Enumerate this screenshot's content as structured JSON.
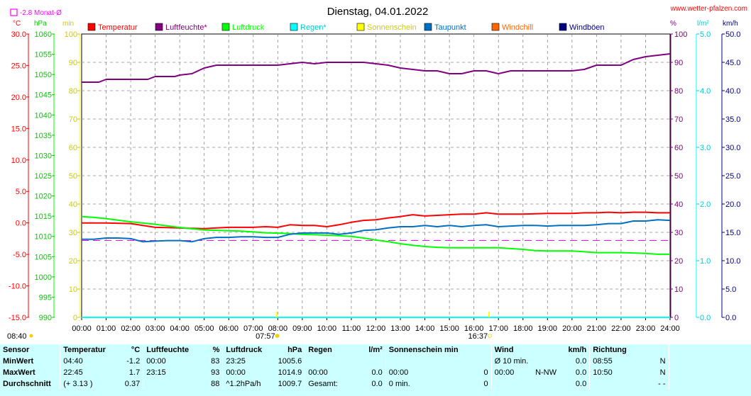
{
  "header": {
    "title": "Dienstag, 04.01.2022",
    "site": "www.wetter-pfalzen.com",
    "month_avg_label": "-2.8 Monat-Ø"
  },
  "units": {
    "temp": "°C",
    "press": "hPa",
    "min": "min",
    "pct": "%",
    "rain": "l/m²",
    "wind": "km/h"
  },
  "legend": [
    {
      "label": "Temperatur",
      "color": "#ff0000"
    },
    {
      "label": "Luftfeuchte*",
      "color": "#800080"
    },
    {
      "label": "Luftdruck",
      "color": "#00ff00"
    },
    {
      "label": "Regen*",
      "color": "#00ffff"
    },
    {
      "label": "Sonnenschein",
      "color": "#ffff00"
    },
    {
      "label": "Taupunkt",
      "color": "#0070c0"
    },
    {
      "label": "Windchill",
      "color": "#ff6600"
    },
    {
      "label": "Windböen",
      "color": "#000080"
    }
  ],
  "chart_data": {
    "type": "line",
    "grid": true,
    "xlim": [
      0,
      24
    ],
    "x_ticks": [
      "00:00",
      "01:00",
      "02:00",
      "03:00",
      "04:00",
      "05:00",
      "06:00",
      "07:00",
      "08:00",
      "09:00",
      "10:00",
      "11:00",
      "12:00",
      "13:00",
      "14:00",
      "15:00",
      "16:00",
      "17:00",
      "18:00",
      "19:00",
      "20:00",
      "21:00",
      "22:00",
      "23:00",
      "24:00"
    ],
    "axes": {
      "temp": {
        "lim": [
          -15,
          30
        ],
        "ticks": [
          "30.0",
          "25.0",
          "20.0",
          "15.0",
          "10.0",
          "5.0",
          "0.0",
          "-5.0",
          "-10.0",
          "-15.0"
        ],
        "color": "#ff0000"
      },
      "pressure": {
        "lim": [
          990,
          1060
        ],
        "ticks": [
          "1060",
          "1055",
          "1050",
          "1045",
          "1040",
          "1035",
          "1030",
          "1025",
          "1020",
          "1015",
          "1010",
          "1005",
          "1000",
          "995",
          "990"
        ],
        "color": "#00cc00"
      },
      "sun_min": {
        "lim": [
          0,
          100
        ],
        "ticks": [
          "100",
          "90",
          "80",
          "70",
          "60",
          "50",
          "40",
          "30",
          "20",
          "10",
          "0"
        ],
        "color": "#cccc00"
      },
      "humidity": {
        "lim": [
          0,
          100
        ],
        "ticks": [
          "100",
          "90",
          "80",
          "70",
          "60",
          "50",
          "40",
          "30",
          "20",
          "10",
          "0"
        ],
        "color": "#800080"
      },
      "rain": {
        "lim": [
          0,
          5
        ],
        "ticks": [
          "5.0",
          "4.0",
          "3.0",
          "2.0",
          "1.0",
          "0.0"
        ],
        "color": "#00cccc"
      },
      "wind": {
        "lim": [
          0,
          50
        ],
        "ticks": [
          "50.0",
          "45.0",
          "40.0",
          "35.0",
          "30.0",
          "25.0",
          "20.0",
          "15.0",
          "10.0",
          "5.0",
          "0.0"
        ],
        "color": "#000080"
      }
    },
    "month_avg_temp": -2.8,
    "sunrise": {
      "label": "07:57",
      "x": 7.95
    },
    "sunset": {
      "label": "16:37",
      "x": 16.62
    },
    "first_label": "08:40",
    "series": [
      {
        "name": "Temperatur",
        "axis": "temp",
        "color": "#ff0000",
        "x": [
          0,
          1,
          2,
          2.5,
          3,
          4,
          5,
          5.5,
          6,
          7,
          7.5,
          8,
          8.5,
          9,
          9.5,
          10,
          10.5,
          11,
          11.5,
          12,
          12.5,
          13,
          13.5,
          14,
          14.5,
          15,
          15.5,
          16,
          16.5,
          17,
          17.5,
          18,
          19,
          20,
          20.5,
          21,
          21.5,
          22,
          22.5,
          23,
          23.5,
          24
        ],
        "y": [
          0.0,
          0.0,
          -0.1,
          -0.4,
          -0.7,
          -0.8,
          -0.9,
          -0.8,
          -0.7,
          -0.7,
          -0.6,
          -0.7,
          -0.3,
          -0.4,
          -0.4,
          -0.6,
          -0.3,
          0.1,
          0.4,
          0.5,
          0.8,
          1.0,
          1.3,
          1.1,
          1.2,
          1.3,
          1.4,
          1.4,
          1.6,
          1.4,
          1.4,
          1.4,
          1.5,
          1.5,
          1.6,
          1.6,
          1.7,
          1.6,
          1.7,
          1.7,
          1.6,
          1.6
        ]
      },
      {
        "name": "Luftfeuchte*",
        "axis": "humidity",
        "color": "#800080",
        "x": [
          0,
          0.7,
          1,
          1.5,
          2,
          2.7,
          3,
          3.8,
          4,
          4.5,
          5,
          5.5,
          6,
          7,
          8,
          8.5,
          9,
          9.5,
          10,
          10.5,
          11,
          11.5,
          12,
          12.5,
          13,
          13.5,
          14,
          14.5,
          15,
          15.5,
          16,
          16.5,
          17,
          17.5,
          18,
          18.5,
          19,
          20,
          20.5,
          21,
          21.5,
          22,
          22.5,
          23,
          23.5,
          24
        ],
        "y": [
          83,
          83,
          84,
          84,
          84,
          84,
          85,
          85,
          85.5,
          86,
          88,
          89,
          89,
          89,
          89,
          89.5,
          90,
          89.5,
          90,
          90,
          90,
          90,
          89.5,
          89,
          88,
          87.5,
          87,
          87,
          86,
          86,
          87,
          87,
          86,
          87,
          87,
          87,
          87,
          87,
          87.5,
          89,
          89,
          89,
          91,
          92,
          92.5,
          93
        ]
      },
      {
        "name": "Luftdruck",
        "axis": "pressure",
        "color": "#00ff00",
        "x": [
          0,
          0.5,
          1,
          1.5,
          2,
          2.5,
          3,
          3.5,
          4,
          4.5,
          5,
          5.5,
          6,
          6.5,
          7,
          7.5,
          8,
          8.5,
          9,
          9.5,
          10,
          10.5,
          11,
          11.5,
          12,
          12.5,
          13,
          13.5,
          14,
          14.5,
          15,
          15.5,
          16,
          16.5,
          17,
          17.5,
          18,
          18.5,
          19,
          19.5,
          20,
          20.5,
          21,
          21.5,
          22,
          22.5,
          23,
          23.5,
          24
        ],
        "y": [
          1014.9,
          1014.7,
          1014.4,
          1014.0,
          1013.6,
          1013.3,
          1013.0,
          1012.6,
          1012.2,
          1011.9,
          1011.6,
          1011.5,
          1011.4,
          1011.3,
          1011.1,
          1010.9,
          1010.8,
          1010.7,
          1010.5,
          1010.4,
          1010.3,
          1010.2,
          1010.0,
          1009.6,
          1009.1,
          1008.7,
          1008.2,
          1007.8,
          1007.5,
          1007.3,
          1007.2,
          1007.2,
          1007.2,
          1007.2,
          1007.2,
          1007.0,
          1006.8,
          1006.5,
          1006.4,
          1006.4,
          1006.4,
          1006.2,
          1006.0,
          1006.0,
          1006.0,
          1005.9,
          1005.8,
          1005.6,
          1005.6
        ]
      },
      {
        "name": "Taupunkt",
        "axis": "temp",
        "color": "#0070c0",
        "x": [
          0,
          0.5,
          1,
          1.5,
          2,
          2.5,
          3,
          3.5,
          4,
          4.5,
          5,
          5.5,
          6,
          6.5,
          7,
          7.5,
          8,
          8.5,
          9,
          9.5,
          10,
          10.5,
          11,
          11.5,
          12,
          12.5,
          13,
          13.5,
          14,
          14.5,
          15,
          15.5,
          16,
          16.5,
          17,
          17.5,
          18,
          18.5,
          19,
          19.5,
          20,
          20.5,
          21,
          21.5,
          22,
          22.5,
          23,
          23.5,
          24
        ],
        "y": [
          -2.6,
          -2.6,
          -2.4,
          -2.4,
          -2.5,
          -3.0,
          -2.9,
          -2.8,
          -2.8,
          -3.0,
          -2.5,
          -2.3,
          -2.3,
          -2.2,
          -2.2,
          -2.3,
          -2.3,
          -1.8,
          -1.6,
          -1.6,
          -1.6,
          -1.8,
          -1.6,
          -1.2,
          -1.1,
          -0.8,
          -0.6,
          -0.6,
          -0.4,
          -0.6,
          -0.4,
          -0.6,
          -0.4,
          -0.3,
          -0.6,
          -0.5,
          -0.4,
          -0.4,
          -0.5,
          -0.4,
          -0.4,
          -0.4,
          -0.3,
          -0.1,
          -0.1,
          0.3,
          0.3,
          0.5,
          0.4
        ]
      },
      {
        "name": "Regen*",
        "axis": "rain",
        "color": "#00ffff",
        "x": [
          0,
          24
        ],
        "y": [
          0,
          0
        ]
      }
    ]
  },
  "stats": {
    "headers": {
      "sensor": "Sensor",
      "temp": "Temperatur",
      "temp_unit": "°C",
      "hum": "Luftfeuchte",
      "hum_unit": "%",
      "press": "Luftdruck",
      "press_unit": "hPa",
      "rain": "Regen",
      "rain_unit": "l/m²",
      "sun": "Sonnenschein min",
      "wind": "Wind",
      "wind_unit": "km/h",
      "dir": "Richtung"
    },
    "rows": [
      {
        "label": "MinWert",
        "temp_time": "04:40",
        "temp_val": "-1.2",
        "hum_time": "00:00",
        "hum_val": "83",
        "press_time": "23:25",
        "press_val": "1005.6",
        "rain_a": "",
        "rain_b": "",
        "sun_a": "",
        "sun_b": "",
        "wind_a": "Ø 10 min.",
        "wind_b": "",
        "wind_c": "0.0",
        "dir_a": "08:55",
        "dir_b": "N"
      },
      {
        "label": "MaxWert",
        "temp_time": "22:45",
        "temp_val": "1.7",
        "hum_time": "23:15",
        "hum_val": "93",
        "press_time": "00:00",
        "press_val": "1014.9",
        "rain_a": "00:00",
        "rain_b": "0.0",
        "sun_a": "00:00",
        "sun_b": "0",
        "wind_a": "00:00",
        "wind_b": "N-NW",
        "wind_c": "0.0",
        "dir_a": "10:50",
        "dir_b": "N"
      },
      {
        "label": "Durchschnitt",
        "temp_time": "(+ 3.13 )",
        "temp_val": "0.37",
        "hum_time": "",
        "hum_val": "88",
        "press_time": "^1.2hPa/h",
        "press_val": "1009.7",
        "rain_a": "Gesamt:",
        "rain_b": "0.0",
        "sun_a": "0 min.",
        "sun_b": "0",
        "wind_a": "",
        "wind_b": "",
        "wind_c": "0.0",
        "dir_a": "",
        "dir_b": "- -"
      }
    ]
  }
}
